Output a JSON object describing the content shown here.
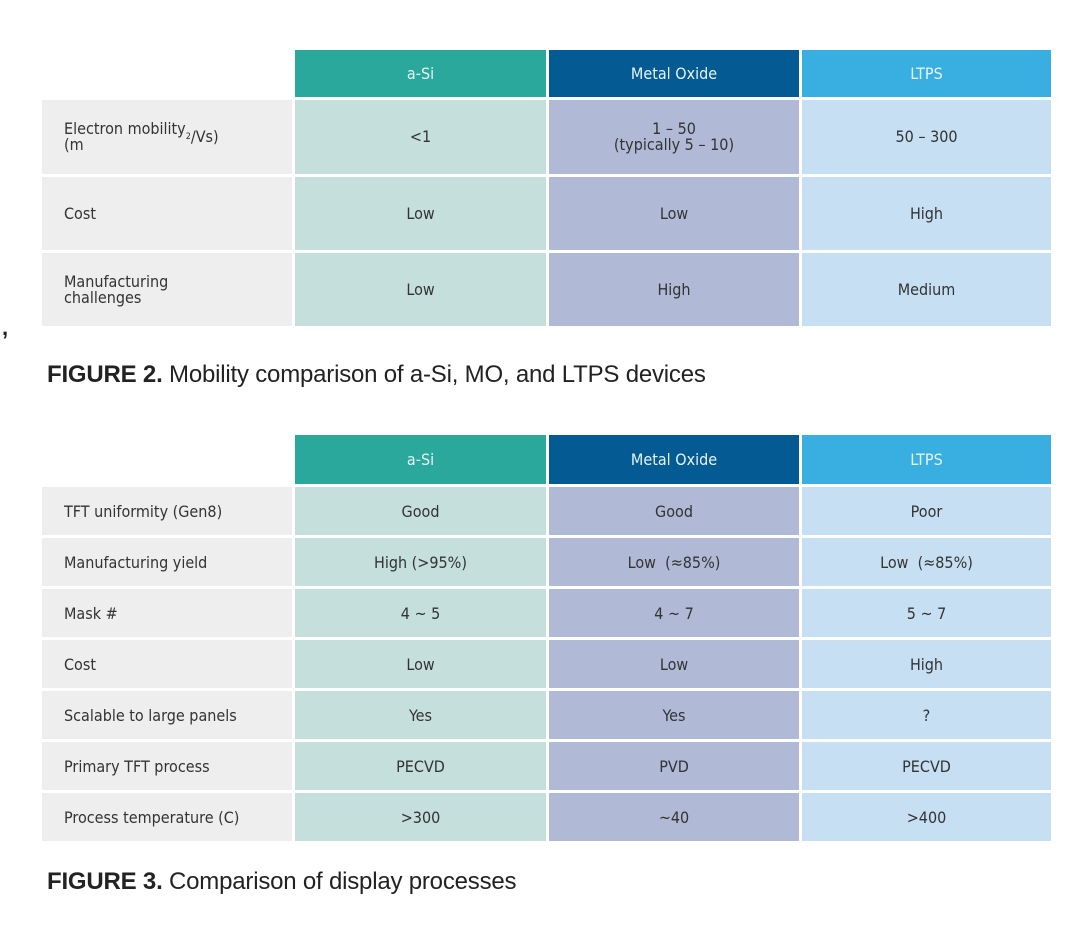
{
  "figure2": {
    "caption_label": "FIGURE 2.",
    "caption_text": "Mobility comparison of a-Si, MO, and LTPS devices",
    "columns": [
      "a-Si",
      "Metal Oxide",
      "LTPS"
    ],
    "rows": [
      {
        "label": "Electron mobility\n(m²/Vs)",
        "values": [
          "<1",
          "1 – 50\n(typically 5 – 10)",
          "50 – 300"
        ]
      },
      {
        "label": "Cost",
        "values": [
          "Low",
          "Low",
          "High"
        ]
      },
      {
        "label": "Manufacturing\nchallenges",
        "values": [
          "Low",
          "High",
          "Medium"
        ]
      }
    ]
  },
  "figure3": {
    "caption_label": "FIGURE 3.",
    "caption_text": "Comparison of display processes",
    "columns": [
      "a-Si",
      "Metal Oxide",
      "LTPS"
    ],
    "rows": [
      {
        "label": "TFT uniformity (Gen8)",
        "values": [
          "Good",
          "Good",
          "Poor"
        ]
      },
      {
        "label": "Manufacturing yield",
        "values": [
          "High (>95%)",
          "Low  (≈85%)",
          "Low  (≈85%)"
        ]
      },
      {
        "label": "Mask #",
        "values": [
          "4 ~ 5",
          "4 ~ 7",
          "5 ~ 7"
        ]
      },
      {
        "label": "Cost",
        "values": [
          "Low",
          "Low",
          "High"
        ]
      },
      {
        "label": "Scalable to large panels",
        "values": [
          "Yes",
          "Yes",
          "?"
        ]
      },
      {
        "label": "Primary TFT process",
        "values": [
          "PECVD",
          "PVD",
          "PECVD"
        ]
      },
      {
        "label": "Process temperature (C)",
        "values": [
          "&gt;300",
          "~40",
          "&gt;400"
        ]
      }
    ]
  },
  "colors": {
    "asi_header": "#2aa89b",
    "metal_oxide_header": "#045a92",
    "ltps_header": "#39aee1",
    "asi_cell": "#c5dfdc",
    "metal_oxide_cell": "#b0bad6",
    "ltps_cell": "#c6dff2",
    "label_cell": "#eeeeee"
  }
}
